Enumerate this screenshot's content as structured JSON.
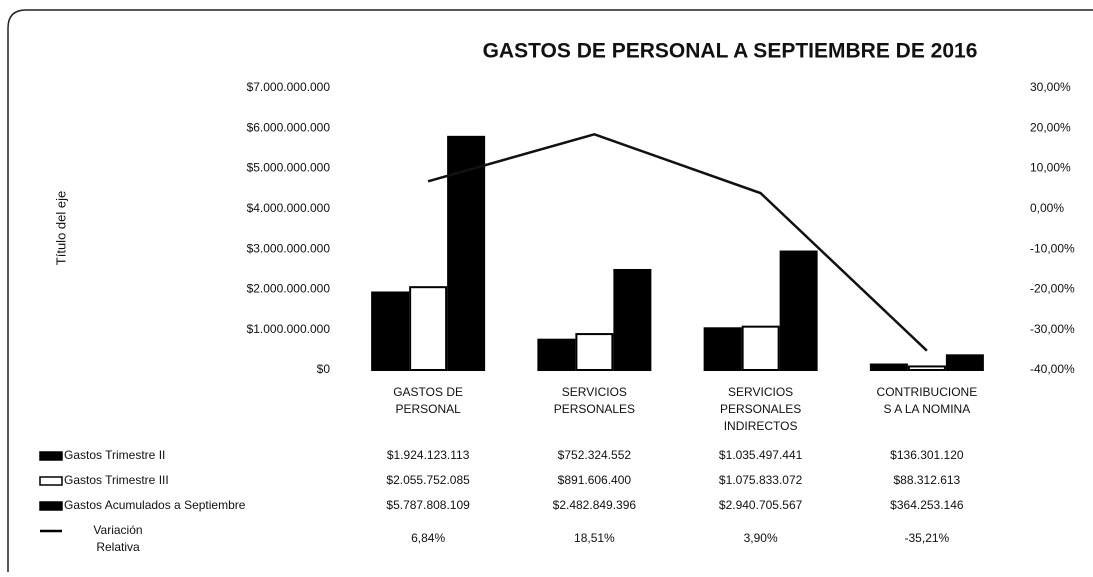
{
  "chart_data": {
    "type": "bar",
    "title": "GASTOS DE PERSONAL A SEPTIEMBRE DE 2016",
    "ylabel": "Título del eje",
    "categories": [
      "GASTOS DE PERSONAL",
      "SERVICIOS PERSONALES",
      "SERVICIOS PERSONALES INDIRECTOS",
      "CONTRIBUCIONES A LA NOMINA"
    ],
    "series": [
      {
        "name": "Gastos Trimestre II",
        "color": "#000000",
        "values": [
          1924123113,
          752324552,
          1035497441,
          136301120
        ],
        "value_labels": [
          "$1.924.123.113",
          "$752.324.552",
          "$1.035.497.441",
          "$136.301.120"
        ]
      },
      {
        "name": "Gastos Trimestre III",
        "color": "#ffffff",
        "values": [
          2055752085,
          891606400,
          1075833072,
          88312613
        ],
        "value_labels": [
          "$2.055.752.085",
          "$891.606.400",
          "$1.075.833.072",
          "$88.312.613"
        ]
      },
      {
        "name": "Gastos Acumulados a Septiembre",
        "color": "#000000",
        "values": [
          5787808109,
          2482849396,
          2940705567,
          364253146
        ],
        "value_labels": [
          "$5.787.808.109",
          "$2.482.849.396",
          "$2.940.705.567",
          "$364.253.146"
        ]
      },
      {
        "name": "Variación Relativa",
        "color": "#000000",
        "axis": "y2",
        "values": [
          6.84,
          18.51,
          3.9,
          -35.21
        ],
        "value_labels": [
          "6,84%",
          "18,51%",
          "3,90%",
          "-35,21%"
        ]
      }
    ],
    "ylim": [
      0,
      7000000000
    ],
    "yticks": [
      {
        "value": 0,
        "label": "$0"
      },
      {
        "value": 1000000000,
        "label": "$1.000.000.000"
      },
      {
        "value": 2000000000,
        "label": "$2.000.000.000"
      },
      {
        "value": 3000000000,
        "label": "$3.000.000.000"
      },
      {
        "value": 4000000000,
        "label": "$4.000.000.000"
      },
      {
        "value": 5000000000,
        "label": "$5.000.000.000"
      },
      {
        "value": 6000000000,
        "label": "$6.000.000.000"
      },
      {
        "value": 7000000000,
        "label": "$7.000.000.000"
      }
    ],
    "y2lim": [
      -40,
      30
    ],
    "y2ticks": [
      {
        "value": -40,
        "label": "-40,00%"
      },
      {
        "value": -30,
        "label": "-30,00%"
      },
      {
        "value": -20,
        "label": "-20,00%"
      },
      {
        "value": -10,
        "label": "-10,00%"
      },
      {
        "value": 0,
        "label": "0,00%"
      },
      {
        "value": 10,
        "label": "10,00%"
      },
      {
        "value": 20,
        "label": "20,00%"
      },
      {
        "value": 30,
        "label": "30,00%"
      }
    ],
    "grid": false
  }
}
